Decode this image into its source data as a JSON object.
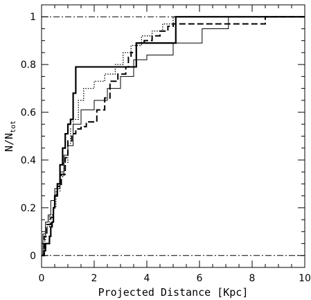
{
  "chart_data": {
    "type": "line",
    "title": "",
    "xlabel": "Projected Distance [Kpc]",
    "ylabel_main": "N/N",
    "ylabel_sub": "tot",
    "xlim": [
      0,
      10
    ],
    "ylim": [
      -0.05,
      1.05
    ],
    "x_ticks": [
      "0",
      "2",
      "4",
      "6",
      "8",
      "10"
    ],
    "y_ticks": [
      "0",
      "0.2",
      "0.4",
      "0.6",
      "0.8",
      "1"
    ],
    "grid": false,
    "legend": "none",
    "reference_lines": [
      {
        "y": 1,
        "style": "dash-dot"
      },
      {
        "y": 0,
        "style": "dash-dot"
      }
    ],
    "series": [
      {
        "style": "thick-solid",
        "x": [
          0,
          0.1,
          0.15,
          0.3,
          0.35,
          0.4,
          0.45,
          0.5,
          0.6,
          0.7,
          0.8,
          0.9,
          1.0,
          1.1,
          1.2,
          1.3,
          3.6,
          5.1
        ],
        "y": [
          0,
          0.02,
          0.05,
          0.08,
          0.12,
          0.14,
          0.2,
          0.25,
          0.3,
          0.38,
          0.45,
          0.51,
          0.55,
          0.57,
          0.68,
          0.79,
          0.89,
          1.0
        ]
      },
      {
        "style": "thin-solid",
        "x": [
          0,
          0.05,
          0.15,
          0.25,
          0.35,
          0.5,
          0.7,
          0.85,
          1.0,
          1.2,
          1.5,
          2.0,
          2.5,
          3.0,
          3.5,
          4.0,
          5.0,
          6.1,
          7.1
        ],
        "y": [
          0,
          0.09,
          0.14,
          0.17,
          0.23,
          0.28,
          0.35,
          0.42,
          0.46,
          0.55,
          0.61,
          0.65,
          0.7,
          0.75,
          0.82,
          0.84,
          0.89,
          0.95,
          1.0
        ]
      },
      {
        "style": "dotted",
        "x": [
          0,
          0.05,
          0.15,
          0.3,
          0.45,
          0.55,
          0.7,
          0.85,
          1.0,
          1.1,
          1.2,
          1.4,
          1.6,
          2.0,
          2.4,
          2.8,
          3.1,
          3.4,
          3.8,
          4.2,
          4.6,
          5.0
        ],
        "y": [
          0,
          0.06,
          0.12,
          0.17,
          0.2,
          0.27,
          0.33,
          0.39,
          0.47,
          0.53,
          0.57,
          0.65,
          0.7,
          0.73,
          0.76,
          0.8,
          0.85,
          0.88,
          0.92,
          0.94,
          0.97,
          1.0
        ]
      },
      {
        "style": "long-dash",
        "x": [
          0,
          0.1,
          0.2,
          0.35,
          0.45,
          0.5,
          0.6,
          0.75,
          0.9,
          1.0,
          1.15,
          1.3,
          1.5,
          1.7,
          2.1,
          2.4,
          2.6,
          2.9,
          3.2,
          3.3,
          3.4,
          3.6,
          3.9,
          4.2,
          4.5,
          4.8,
          5.0,
          8.5
        ],
        "y": [
          0,
          0.08,
          0.13,
          0.16,
          0.2,
          0.25,
          0.29,
          0.34,
          0.41,
          0.48,
          0.51,
          0.53,
          0.54,
          0.56,
          0.61,
          0.66,
          0.73,
          0.76,
          0.79,
          0.83,
          0.85,
          0.89,
          0.9,
          0.92,
          0.94,
          0.96,
          0.97,
          1.0
        ]
      }
    ]
  }
}
